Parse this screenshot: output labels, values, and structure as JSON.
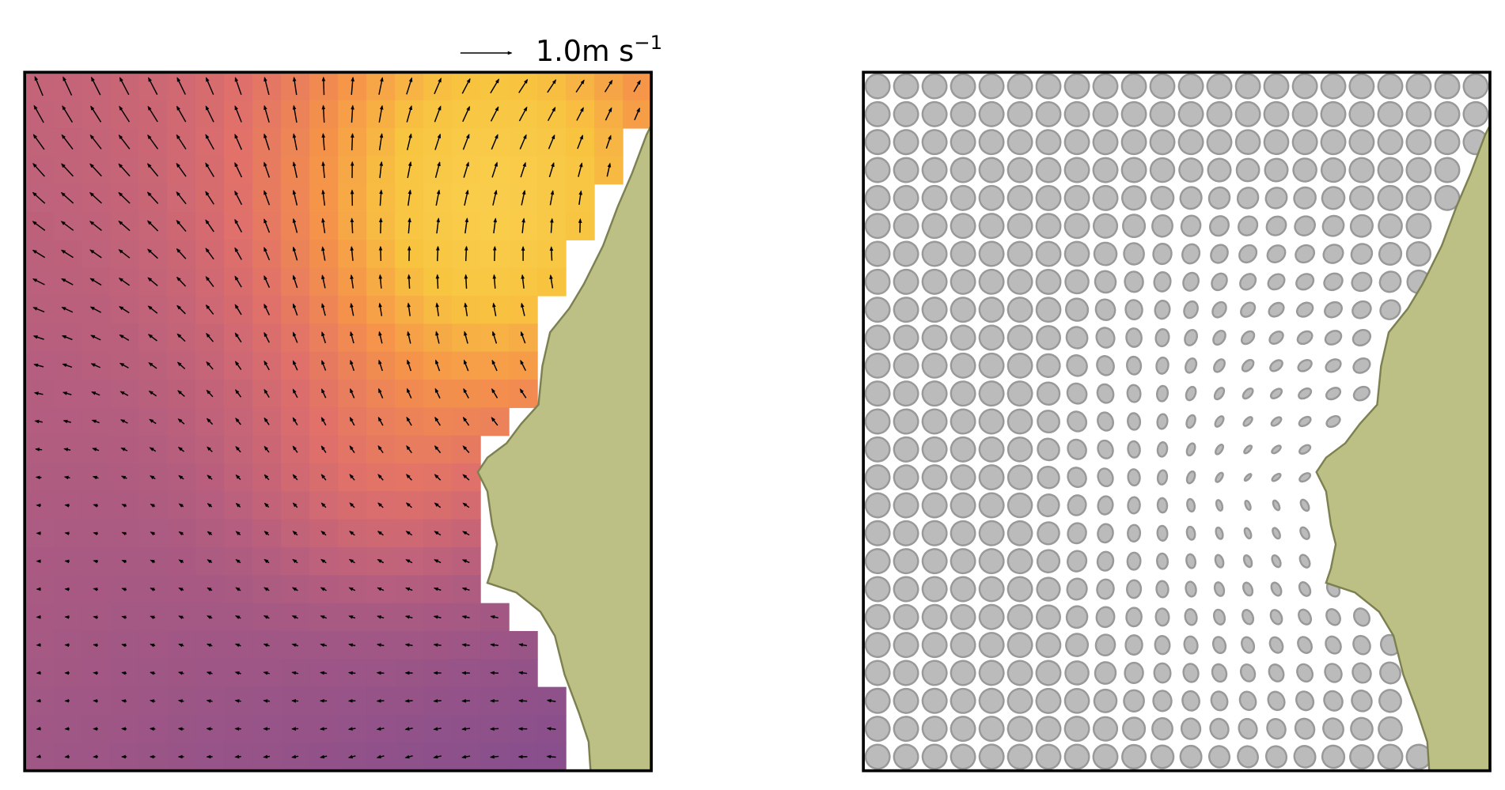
{
  "key": {
    "label": "1.0m s",
    "exponent": "−1"
  }
}
